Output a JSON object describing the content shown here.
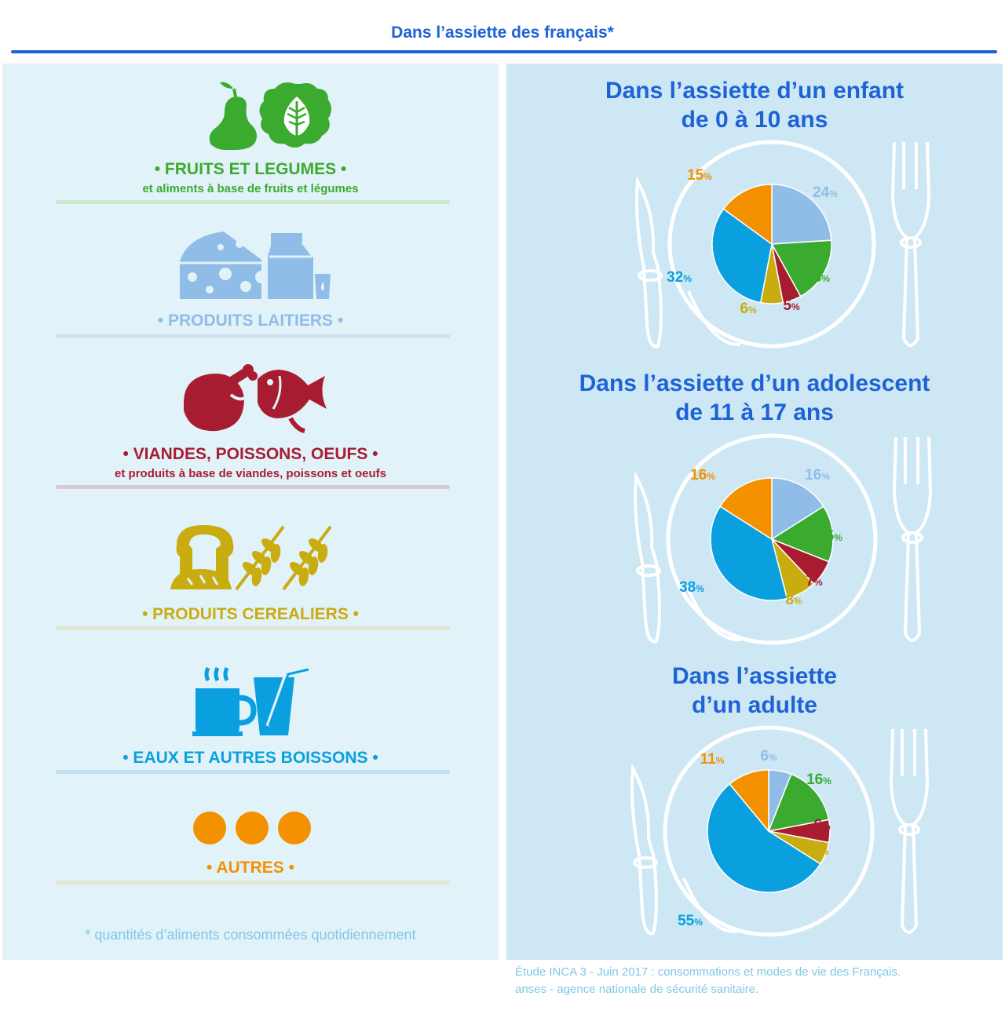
{
  "header": {
    "title": "Dans l’assiette des français*"
  },
  "categories": [
    {
      "title": "• FRUITS ET LEGUMES •",
      "subtitle": "et aliments à base de fruits et légumes",
      "color": "#3aab2f",
      "rule": "#c8e8cf",
      "icon": "pear-lettuce-icon"
    },
    {
      "title": "• PRODUITS LAITIERS •",
      "subtitle": "",
      "color": "#8fbde8",
      "rule": "#cfe3f3",
      "icon": "cheese-milk-icon"
    },
    {
      "title": "• VIANDES, POISSONS, OEUFS •",
      "subtitle": "et produits à base de viandes, poissons et oeufs",
      "color": "#a81c32",
      "rule": "#d9cbd6",
      "icon": "chicken-fish-icon"
    },
    {
      "title": "• PRODUITS CEREALIERS •",
      "subtitle": "",
      "color": "#c9ac0f",
      "rule": "#dde6d0",
      "icon": "bread-wheat-icon"
    },
    {
      "title": "• EAUX ET AUTRES BOISSONS •",
      "subtitle": "",
      "color": "#0aa0e0",
      "rule": "#bfe2f3",
      "icon": "cup-glass-icon"
    },
    {
      "title": "• AUTRES •",
      "subtitle": "",
      "color": "#f39100",
      "rule": "#e3e6d2",
      "icon": "dots-icon"
    }
  ],
  "footnote": "* quantités d’aliments consommées quotidiennement",
  "source": {
    "line1": "Étude INCA 3 - Juin 2017 : consommations et modes de vie des Français.",
    "line2": "anses - agence nationale de sécurité sanitaire."
  },
  "colors": {
    "fruits": "#3aab2f",
    "laitiers": "#8fbde8",
    "viandes": "#a81c32",
    "cereales": "#c9ac0f",
    "boissons": "#0aa0e0",
    "autres": "#f39100"
  },
  "chart_data": [
    {
      "type": "pie",
      "title_line1": "Dans l’assiette d’un enfant",
      "title_line2": "de 0 à 10 ans",
      "unit": "%",
      "categories": [
        "PRODUITS LAITIERS",
        "FRUITS ET LEGUMES",
        "VIANDES, POISSONS, OEUFS",
        "PRODUITS CEREALIERS",
        "EAUX ET AUTRES BOISSONS",
        "AUTRES"
      ],
      "values": [
        24,
        18,
        5,
        6,
        32,
        15
      ]
    },
    {
      "type": "pie",
      "title_line1": "Dans l’assiette d’un adolescent",
      "title_line2": "de 11 à 17 ans",
      "unit": "%",
      "categories": [
        "PRODUITS LAITIERS",
        "FRUITS ET LEGUMES",
        "VIANDES, POISSONS, OEUFS",
        "PRODUITS CEREALIERS",
        "EAUX ET AUTRES BOISSONS",
        "AUTRES"
      ],
      "values": [
        16,
        15,
        7,
        8,
        38,
        16
      ]
    },
    {
      "type": "pie",
      "title_line1": "Dans l’assiette",
      "title_line2": "d’un adulte",
      "unit": "%",
      "categories": [
        "PRODUITS LAITIERS",
        "FRUITS ET LEGUMES",
        "VIANDES, POISSONS, OEUFS",
        "PRODUITS CEREALIERS",
        "EAUX ET AUTRES BOISSONS",
        "AUTRES"
      ],
      "values": [
        6,
        16,
        6,
        6,
        55,
        11
      ]
    }
  ]
}
